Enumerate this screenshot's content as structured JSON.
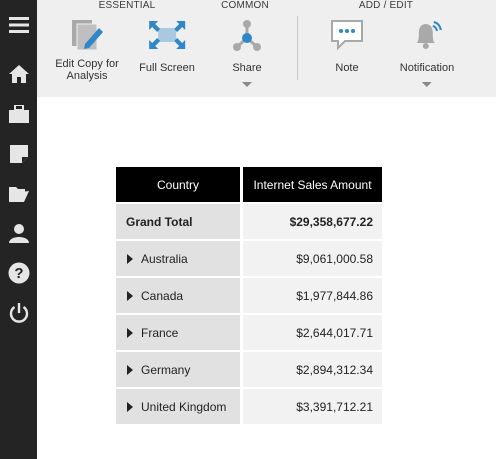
{
  "sidebar": {
    "icons": [
      "menu-icon",
      "home-icon",
      "briefcase-icon",
      "note-icon",
      "folder-icon",
      "user-icon",
      "help-icon",
      "power-icon"
    ]
  },
  "toolbar": {
    "groups": {
      "essential": "ESSENTIAL",
      "common": "COMMON",
      "add_edit": "ADD / EDIT"
    },
    "buttons": {
      "edit_copy": "Edit Copy for Analysis",
      "full_screen": "Full Screen",
      "share": "Share",
      "note": "Note",
      "notification": "Notification"
    }
  },
  "colors": {
    "sidebar_bg": "#242424",
    "toolbar_bg": "#efefef",
    "accent_blue": "#2e87c8",
    "header_bg": "#000000"
  },
  "table": {
    "columns": [
      "Country",
      "Internet Sales Amount"
    ],
    "grand_total": {
      "label": "Grand Total",
      "value": "$29,358,677.22"
    },
    "rows": [
      {
        "country": "Australia",
        "amount": "$9,061,000.58"
      },
      {
        "country": "Canada",
        "amount": "$1,977,844.86"
      },
      {
        "country": "France",
        "amount": "$2,644,017.71"
      },
      {
        "country": "Germany",
        "amount": "$2,894,312.34"
      },
      {
        "country": "United Kingdom",
        "amount": "$3,391,712.21"
      }
    ]
  }
}
